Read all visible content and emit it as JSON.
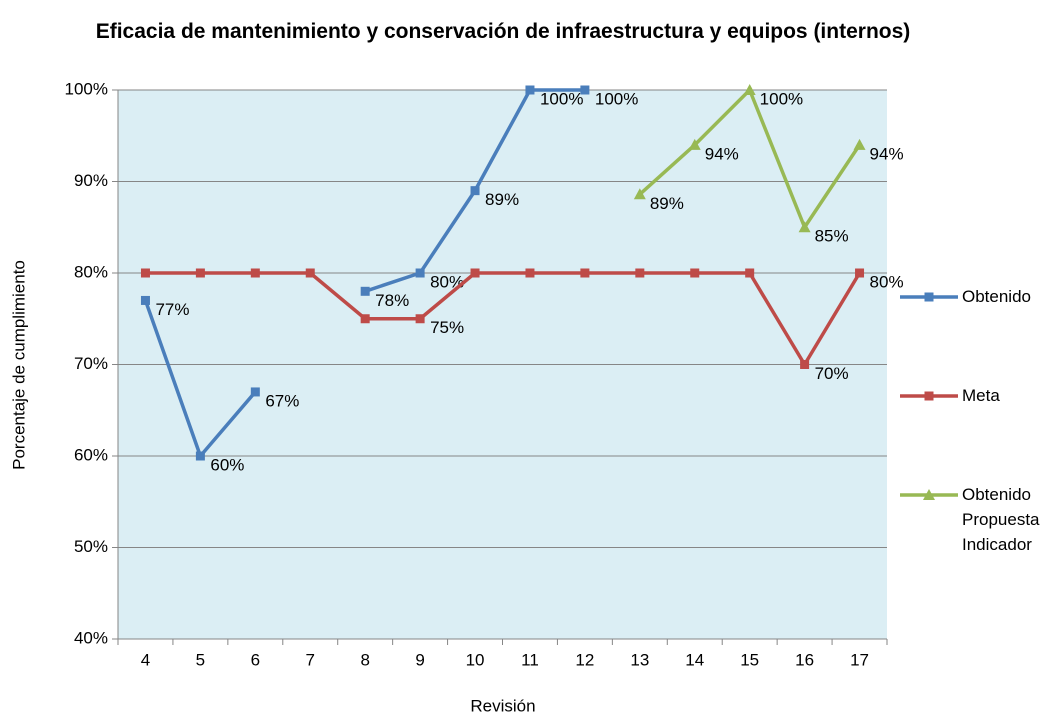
{
  "chart_data": {
    "type": "line",
    "title": "Eficacia de mantenimiento y conservación de infraestructura y equipos (internos)",
    "x_label": "Revisión",
    "y_label": "Porcentaje de cumplimiento",
    "categories": [
      "4",
      "5",
      "6",
      "7",
      "8",
      "9",
      "10",
      "11",
      "12",
      "13",
      "14",
      "15",
      "16",
      "17"
    ],
    "series": [
      {
        "name": "Obtenido",
        "color": "#4a7ebb",
        "marker": "square",
        "values": [
          77,
          60,
          67,
          null,
          78,
          80,
          89,
          100,
          100,
          null,
          null,
          null,
          null,
          null
        ],
        "value_labels": [
          "77%",
          "60%",
          "67%",
          null,
          "78%",
          "80%",
          "89%",
          "100%",
          "100%",
          null,
          null,
          null,
          null,
          null
        ]
      },
      {
        "name": "Meta",
        "color": "#be4b48",
        "marker": "square",
        "values": [
          80,
          80,
          80,
          80,
          75,
          75,
          80,
          80,
          80,
          80,
          80,
          80,
          70,
          80
        ],
        "value_labels": [
          null,
          null,
          null,
          null,
          null,
          "75%",
          null,
          null,
          null,
          null,
          null,
          null,
          "70%",
          "80%"
        ]
      },
      {
        "name": "Obtenido Propuesta Indicador",
        "color": "#98b954",
        "marker": "triangle",
        "values": [
          null,
          null,
          null,
          null,
          null,
          null,
          null,
          null,
          null,
          88.6,
          94,
          100,
          85,
          94
        ],
        "value_labels": [
          null,
          null,
          null,
          null,
          null,
          null,
          null,
          null,
          null,
          "89%",
          "94%",
          "100%",
          "85%",
          "94%"
        ]
      }
    ],
    "ylim": [
      40,
      100
    ],
    "yticks": [
      {
        "value": 40,
        "label": "40%"
      },
      {
        "value": 50,
        "label": "50%"
      },
      {
        "value": 60,
        "label": "60%"
      },
      {
        "value": 70,
        "label": "70%"
      },
      {
        "value": 80,
        "label": "80%"
      },
      {
        "value": 90,
        "label": "90%"
      },
      {
        "value": 100,
        "label": "100%"
      }
    ],
    "grid": true,
    "legend": "right",
    "plot_background": "#dbeef4"
  }
}
